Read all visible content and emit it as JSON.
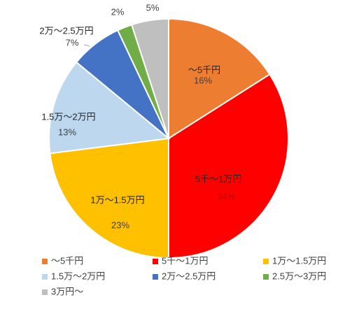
{
  "chart_data": {
    "type": "pie",
    "categories": [
      "～5千円",
      "5千～1万円",
      "1万～1.5万円",
      "1.5万～2万円",
      "2万～2.5万円",
      "2.5万～3万円",
      "3万円～"
    ],
    "values": [
      16,
      34,
      23,
      13,
      7,
      2,
      5
    ],
    "value_labels": [
      "16%",
      "34%",
      "23%",
      "13%",
      "7%",
      "2%",
      "5%"
    ],
    "colors": [
      "#ED7D31",
      "#FF0000",
      "#FFC000",
      "#BDD7EE",
      "#4472C4",
      "#70AD47",
      "#BFBFBF"
    ],
    "legend": "bottom"
  }
}
